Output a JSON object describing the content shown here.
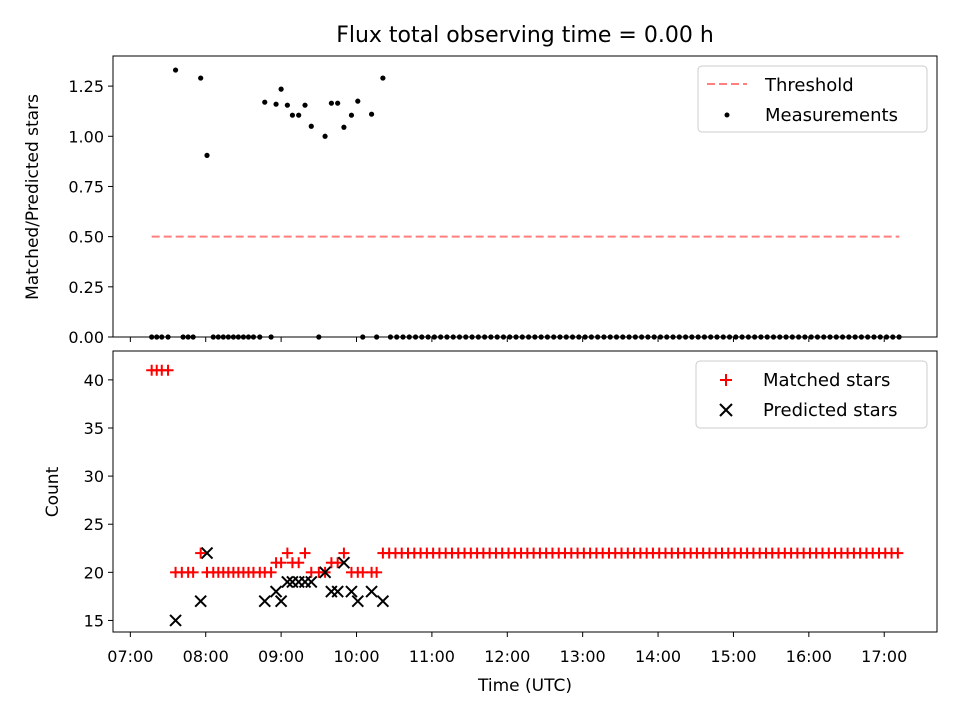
{
  "chart_data": [
    {
      "type": "scatter",
      "title": "Flux total observing time = 0.00 h",
      "xlabel": "",
      "ylabel": "Matched/Predicted stars",
      "xlim_hours": [
        6.77,
        17.7
      ],
      "ylim": [
        0,
        1.4
      ],
      "yticks": [
        0,
        0.25,
        0.5,
        0.75,
        1.0,
        1.25
      ],
      "ytick_labels": [
        "0.00",
        "0.25",
        "0.50",
        "0.75",
        "1.00",
        "1.25"
      ],
      "legend_position": "top-right",
      "legend": [
        "Threshold",
        "Measurements"
      ],
      "threshold": {
        "name": "Threshold",
        "value": 0.5,
        "x_start": 7.283,
        "x_end": 17.2,
        "color": "#ff7f7f"
      },
      "measurements": {
        "name": "Measurements",
        "color": "#000000",
        "x": [
          7.283,
          7.35,
          7.417,
          7.5,
          7.6,
          7.7,
          7.767,
          7.833,
          7.933,
          8.017,
          8.1,
          8.167,
          8.233,
          8.3,
          8.367,
          8.433,
          8.5,
          8.567,
          8.633,
          8.717,
          8.783,
          8.867,
          8.933,
          9.0,
          9.083,
          9.15,
          9.233,
          9.317,
          9.4,
          9.5,
          9.583,
          9.667,
          9.75,
          9.833,
          9.933,
          10.017,
          10.083,
          10.2,
          10.267,
          10.35
        ],
        "y": [
          0,
          0,
          0,
          0,
          1.33,
          0,
          0,
          0,
          1.29,
          0.905,
          0,
          0,
          0,
          0,
          0,
          0,
          0,
          0,
          0,
          0,
          1.17,
          0,
          1.16,
          1.235,
          1.155,
          1.105,
          1.105,
          1.155,
          1.05,
          0,
          1.0,
          1.165,
          1.165,
          1.045,
          1.105,
          1.175,
          0,
          1.11,
          0,
          1.29
        ],
        "zero_series_start": 10.45,
        "zero_series_end": 17.2,
        "zero_series_step": 0.0833
      }
    },
    {
      "type": "scatter",
      "title": "",
      "xlabel": "Time (UTC)",
      "ylabel": "Count",
      "xlim_hours": [
        6.77,
        17.7
      ],
      "ylim": [
        13.8,
        43
      ],
      "yticks": [
        15,
        20,
        25,
        30,
        35,
        40
      ],
      "ytick_labels": [
        "15",
        "20",
        "25",
        "30",
        "35",
        "40"
      ],
      "xtick_hours": [
        7,
        8,
        9,
        10,
        11,
        12,
        13,
        14,
        15,
        16,
        17
      ],
      "xtick_labels": [
        "07:00",
        "08:00",
        "09:00",
        "10:00",
        "11:00",
        "12:00",
        "13:00",
        "14:00",
        "15:00",
        "16:00",
        "17:00"
      ],
      "legend_position": "top-right",
      "legend": [
        "Matched stars",
        "Predicted stars"
      ],
      "matched": {
        "name": "Matched stars",
        "color": "#ff0000",
        "x": [
          7.283,
          7.35,
          7.417,
          7.5,
          7.6,
          7.683,
          7.767,
          7.833,
          7.933,
          8.017,
          8.1,
          8.167,
          8.233,
          8.3,
          8.367,
          8.433,
          8.5,
          8.567,
          8.633,
          8.717,
          8.783,
          8.867,
          8.933,
          9.0,
          9.083,
          9.15,
          9.233,
          9.317,
          9.4,
          9.5,
          9.583,
          9.667,
          9.75,
          9.833,
          9.933,
          10.017,
          10.083,
          10.2,
          10.267
        ],
        "y": [
          41,
          41,
          41,
          41,
          20,
          20,
          20,
          20,
          22,
          20,
          20,
          20,
          20,
          20,
          20,
          20,
          20,
          20,
          20,
          20,
          20,
          20,
          21,
          21,
          22,
          21,
          21,
          22,
          20,
          20,
          20,
          21,
          21,
          22,
          20,
          20,
          20,
          20,
          20
        ],
        "constant_series_value": 22,
        "constant_series_start": 10.35,
        "constant_series_end": 17.2,
        "constant_series_step": 0.0833
      },
      "predicted": {
        "name": "Predicted stars",
        "color": "#000000",
        "x": [
          7.6,
          7.933,
          8.017,
          8.783,
          8.933,
          9.0,
          9.083,
          9.15,
          9.233,
          9.317,
          9.4,
          9.583,
          9.667,
          9.75,
          9.833,
          9.933,
          10.017,
          10.2,
          10.35
        ],
        "y": [
          15,
          17,
          22,
          17,
          18,
          17,
          19,
          19,
          19,
          19,
          19,
          20,
          18,
          18,
          21,
          18,
          17,
          18,
          17
        ]
      }
    }
  ]
}
